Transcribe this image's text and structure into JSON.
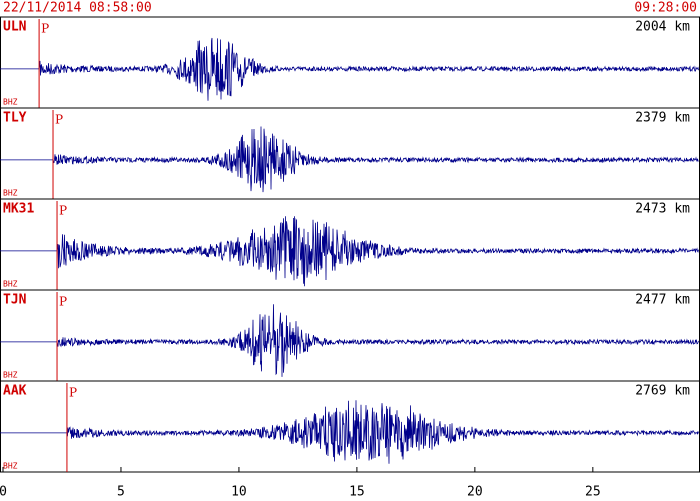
{
  "chart_data": {
    "type": "seismogram",
    "title_left": "22/11/2014 08:58:00",
    "title_right": "09:28:00",
    "xlim": [
      0,
      29.5
    ],
    "xticks": [
      0,
      5,
      10,
      15,
      20,
      25
    ],
    "line_color": "#00008b",
    "marker_color": "#d00000",
    "traces": [
      {
        "name": "ULN",
        "channel": "BHZ",
        "distance": "2004 km",
        "phase": "P",
        "p_time": 1.53
      },
      {
        "name": "TLY",
        "channel": "BHZ",
        "distance": "2379 km",
        "phase": "P",
        "p_time": 2.12
      },
      {
        "name": "MK31",
        "channel": "BHZ",
        "distance": "2473 km",
        "phase": "P",
        "p_time": 2.29
      },
      {
        "name": "TJN",
        "channel": "BHZ",
        "distance": "2477 km",
        "phase": "P",
        "p_time": 2.29
      },
      {
        "name": "AAK",
        "channel": "BHZ",
        "distance": "2769 km",
        "phase": "P",
        "p_time": 2.71
      }
    ]
  }
}
